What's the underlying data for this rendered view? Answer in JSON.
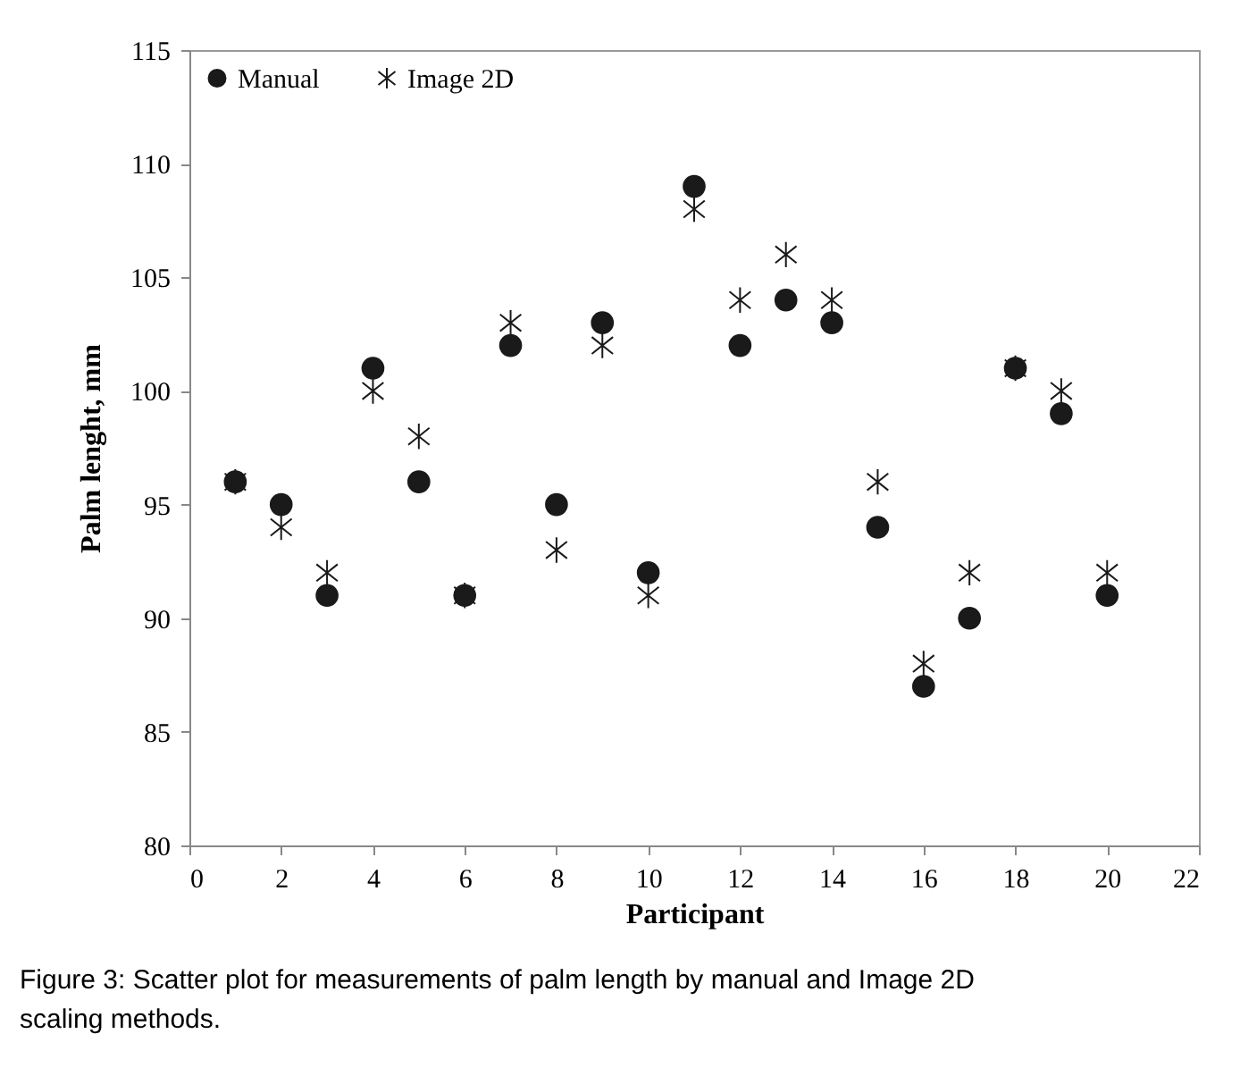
{
  "chart_data": {
    "type": "scatter",
    "xlabel": "Participant",
    "ylabel": "Palm  lenght, mm",
    "x": [
      1,
      2,
      3,
      4,
      5,
      6,
      7,
      8,
      9,
      10,
      11,
      12,
      13,
      14,
      15,
      16,
      17,
      18,
      19,
      20
    ],
    "series": [
      {
        "name": "Manual",
        "color": "#1a1a1a",
        "marker": "circle",
        "values": [
          96,
          95,
          91,
          101,
          96,
          91,
          102,
          95,
          103,
          92,
          109,
          102,
          104,
          103,
          94,
          87,
          90,
          101,
          99,
          91
        ]
      },
      {
        "name": "Image 2D",
        "color": "#1a1a1a",
        "marker": "cross",
        "values": [
          96,
          94,
          92,
          100,
          98,
          91,
          103,
          93,
          102,
          91,
          108,
          104,
          106,
          104,
          96,
          88,
          92,
          101,
          100,
          92
        ]
      }
    ],
    "xlim": [
      0,
      22
    ],
    "xticks": [
      0,
      2,
      4,
      6,
      8,
      10,
      12,
      14,
      16,
      18,
      20,
      22
    ],
    "ylim": [
      80,
      115
    ],
    "yticks": [
      80,
      85,
      90,
      95,
      100,
      105,
      110,
      115
    ],
    "grid": false,
    "legend": "top left",
    "annotations": [
      "Figure 3: Scatter plot for measurements of palm length by manual and Image 2D scaling methods."
    ]
  }
}
